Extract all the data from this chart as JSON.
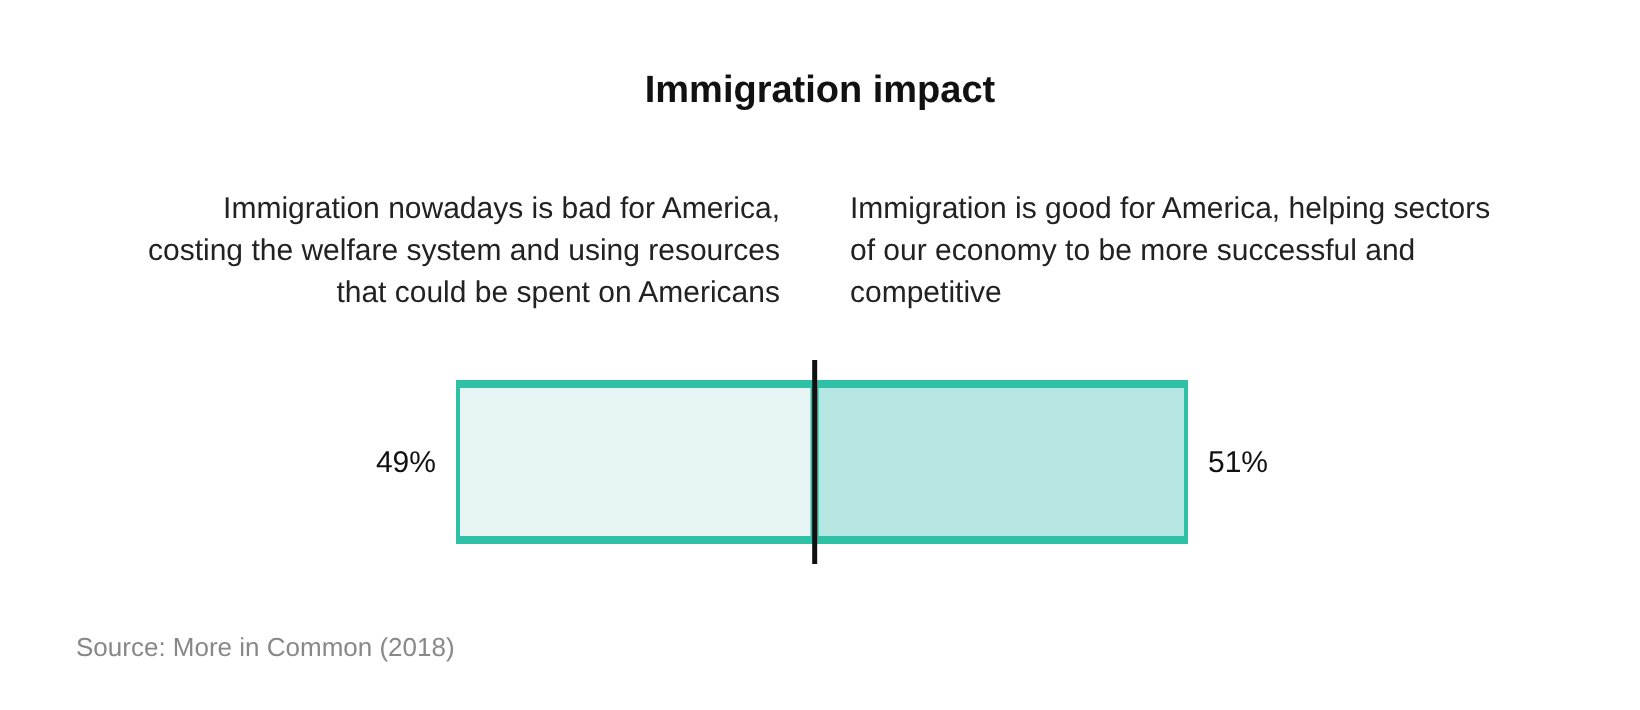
{
  "chart_data": {
    "type": "bar",
    "orientation": "horizontal",
    "stacked": true,
    "title": "Immigration impact",
    "categories": [
      null
    ],
    "xlim": [
      0,
      100
    ],
    "series": [
      {
        "name": "Immigration nowadays is bad for America, costing the welfare system and using resources that could be spent on Americans",
        "color": "#e6f5f3",
        "values": [
          49
        ],
        "value_labels": [
          "49%"
        ]
      },
      {
        "name": "Immigration is good for America, helping sectors of our economy to be more successful and competitive",
        "color": "#b5e6e1",
        "values": [
          51
        ],
        "value_labels": [
          "51%"
        ]
      }
    ],
    "ref_lines": [
      {
        "axis": "x",
        "value": 49,
        "label": null,
        "color": "#111111"
      }
    ],
    "annotations": [
      "Source: More in Common (2018)"
    ]
  }
}
